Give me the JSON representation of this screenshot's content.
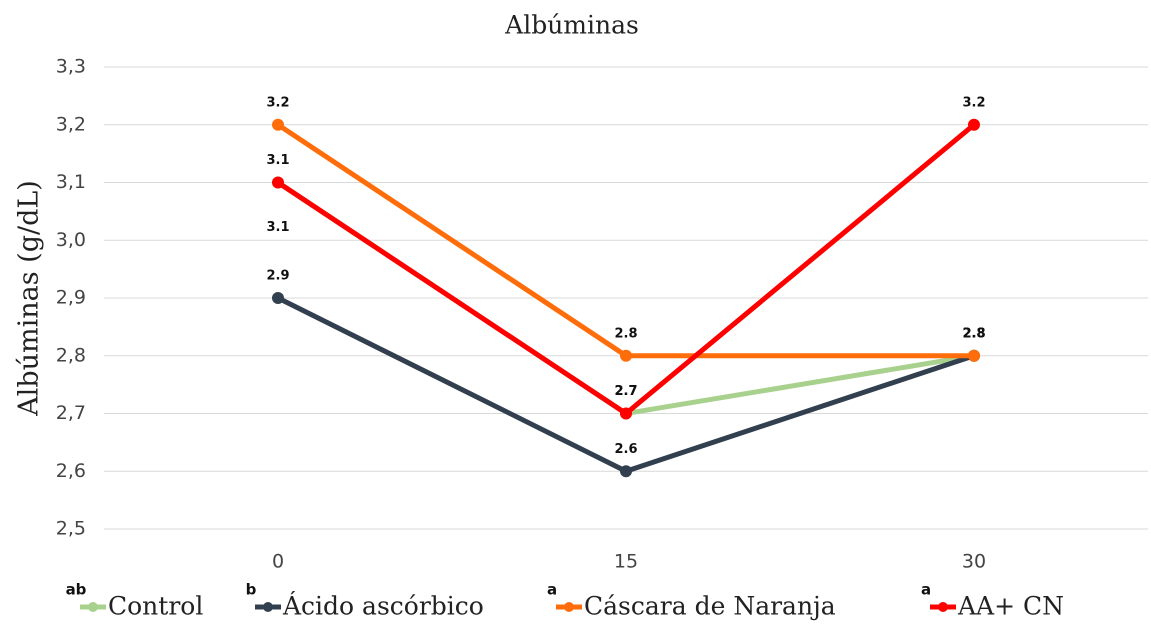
{
  "chart_data": {
    "type": "line",
    "title": "Albúminas",
    "y_label": "Albúminas (g/dL)",
    "categories": [
      "0",
      "15",
      "30"
    ],
    "series": [
      {
        "name": "Control",
        "superscript": "ab",
        "color": "#a9d18e",
        "values": [
          3.1,
          2.7,
          2.8
        ]
      },
      {
        "name": "Ácido ascórbico",
        "superscript": "b",
        "color": "#323f4f",
        "values": [
          2.9,
          2.6,
          2.8
        ]
      },
      {
        "name": "Cáscara de Naranja",
        "superscript": "a",
        "color": "#ff6d0a",
        "values": [
          3.2,
          2.8,
          2.8
        ]
      },
      {
        "name": "AA+ CN",
        "superscript": "a",
        "color": "#ff0000",
        "values": [
          3.1,
          2.7,
          3.2
        ]
      }
    ],
    "ylim": [
      2.5,
      3.3
    ],
    "yticks": [
      {
        "value": 2.5,
        "label": "2,5"
      },
      {
        "value": 2.6,
        "label": "2,6"
      },
      {
        "value": 2.7,
        "label": "2,7"
      },
      {
        "value": 2.8,
        "label": "2,8"
      },
      {
        "value": 2.9,
        "label": "2,9"
      },
      {
        "value": 3.0,
        "label": "3,0"
      },
      {
        "value": 3.1,
        "label": "3,1"
      },
      {
        "value": 3.2,
        "label": "3,2"
      },
      {
        "value": 3.3,
        "label": "3,3"
      }
    ],
    "grid": true
  }
}
